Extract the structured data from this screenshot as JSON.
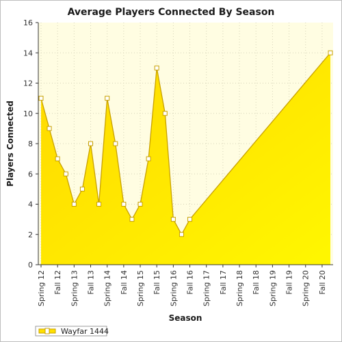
{
  "chart_data": {
    "type": "area",
    "title": "Average Players Connected By Season",
    "xlabel": "Season",
    "ylabel": "Players Connected",
    "ylim": [
      0,
      16
    ],
    "y_ticks": [
      0,
      2,
      4,
      6,
      8,
      10,
      12,
      14,
      16
    ],
    "x_tick_labels": [
      "Spring 12",
      "Fall 12",
      "Spring 13",
      "Fall 13",
      "Spring 14",
      "Fall 14",
      "Spring 15",
      "Fall 15",
      "Spring 16",
      "Fall 16",
      "Spring 17",
      "Fall 17",
      "Spring 18",
      "Fall 18",
      "Spring 19",
      "Fall 19",
      "Spring 20",
      "Fall 20"
    ],
    "x_range_months": [
      0,
      105
    ],
    "grid": true,
    "legend_position": "bottom-left",
    "series": [
      {
        "name": "Wayfar 1444",
        "color": "#ffee00",
        "line_color": "#c8a000",
        "marker_fill": "#ffffff",
        "points": [
          {
            "x": 0,
            "y": 11
          },
          {
            "x": 3,
            "y": 9
          },
          {
            "x": 6,
            "y": 7
          },
          {
            "x": 9,
            "y": 6
          },
          {
            "x": 12,
            "y": 4
          },
          {
            "x": 15,
            "y": 5
          },
          {
            "x": 18,
            "y": 8
          },
          {
            "x": 21,
            "y": 4
          },
          {
            "x": 24,
            "y": 11
          },
          {
            "x": 27,
            "y": 8
          },
          {
            "x": 30,
            "y": 4
          },
          {
            "x": 33,
            "y": 3
          },
          {
            "x": 36,
            "y": 4
          },
          {
            "x": 39,
            "y": 7
          },
          {
            "x": 42,
            "y": 13
          },
          {
            "x": 45,
            "y": 10
          },
          {
            "x": 48,
            "y": 3
          },
          {
            "x": 51,
            "y": 2
          },
          {
            "x": 54,
            "y": 3
          },
          {
            "x": 105,
            "y": 14
          }
        ]
      }
    ]
  }
}
